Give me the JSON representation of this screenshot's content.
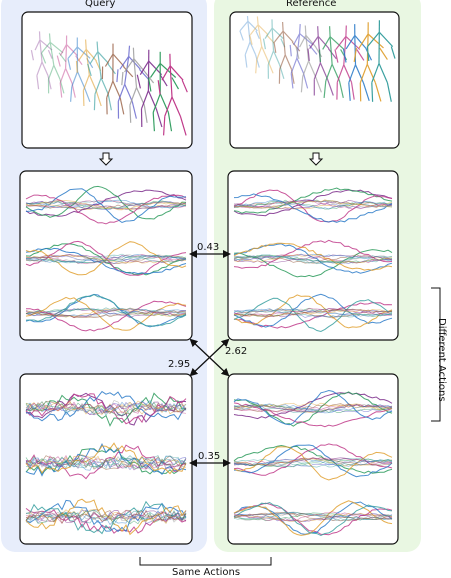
{
  "columns": {
    "query_title": "Query",
    "reference_title": "Reference"
  },
  "distances": {
    "query_top_reference_top": "0.43",
    "reference_top_query_bottom": "2.62",
    "query_top_reference_bottom": "2.95",
    "query_bottom_reference_bottom": "0.35"
  },
  "bracket_labels": {
    "same_actions": "Same Actions",
    "different_actions": "Different Actions"
  },
  "colors": {
    "query_panel_bg": "#e7edfb",
    "reference_panel_bg": "#e9f7e2",
    "skeleton_palette": [
      "#7a2a8a",
      "#2a9a5a",
      "#c03a8a",
      "#2a7ac8",
      "#e0a030",
      "#3aa0a0",
      "#8a4a2a",
      "#5a5ac8",
      "#999999"
    ]
  }
}
